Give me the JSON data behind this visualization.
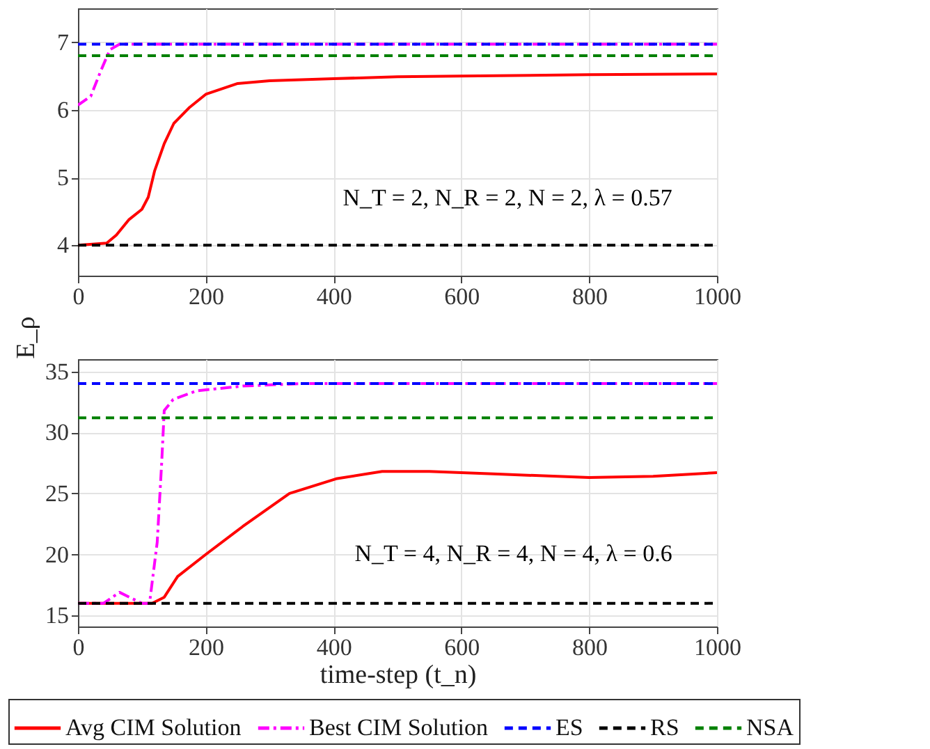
{
  "chart_data": [
    {
      "type": "line",
      "xlim": [
        0,
        1000
      ],
      "xticks": [
        0,
        200,
        400,
        600,
        800,
        1000
      ],
      "ylim": [
        3.55,
        7.5
      ],
      "yticks": [
        4,
        5,
        6,
        7
      ],
      "grid": true,
      "legend": false,
      "marker": "none",
      "annotations": [
        "N_T = 2, N_R = 2, N = 2, λ = 0.57"
      ],
      "series": [
        {
          "color": "#ff0000",
          "line_style": "solid",
          "x": [
            0,
            45,
            60,
            80,
            100,
            110,
            120,
            135,
            150,
            175,
            200,
            250,
            300,
            400,
            500,
            600,
            800,
            1000
          ],
          "values": [
            4.0,
            4.03,
            4.15,
            4.38,
            4.53,
            4.71,
            5.1,
            5.5,
            5.8,
            6.04,
            6.23,
            6.39,
            6.43,
            6.46,
            6.49,
            6.5,
            6.52,
            6.53
          ]
        },
        {
          "color": "#ff00ff",
          "line_style": "dashdot",
          "x": [
            0,
            20,
            35,
            50,
            65,
            1000
          ],
          "values": [
            6.07,
            6.2,
            6.56,
            6.89,
            6.97,
            6.97
          ]
        },
        {
          "color": "#0000ff",
          "line_style": "dashed",
          "x": [
            0,
            1000
          ],
          "values": [
            6.97,
            6.97
          ]
        },
        {
          "color": "#000000",
          "line_style": "dashed",
          "x": [
            0,
            1000
          ],
          "values": [
            4.0,
            4.0
          ]
        },
        {
          "color": "#008000",
          "line_style": "dashed",
          "x": [
            0,
            1000
          ],
          "values": [
            6.8,
            6.8
          ]
        }
      ]
    },
    {
      "type": "line",
      "xlabel": "time-step (t_n)",
      "ylabel": "E_ρ",
      "xlim": [
        0,
        1000
      ],
      "xticks": [
        0,
        200,
        400,
        600,
        800,
        1000
      ],
      "ylim": [
        14.1,
        36
      ],
      "yticks": [
        15,
        20,
        25,
        30,
        35
      ],
      "grid": true,
      "legend": "bottom",
      "marker": "none",
      "annotations": [
        "N_T = 4, N_R = 4, N = 4, λ = 0.6"
      ],
      "series": [
        {
          "name": "Avg CIM Solution",
          "color": "#ff0000",
          "line_style": "solid",
          "x": [
            0,
            116,
            135,
            156,
            200,
            258,
            331,
            404,
            476,
            550,
            650,
            800,
            900,
            1000
          ],
          "values": [
            16.0,
            16.0,
            16.5,
            18.2,
            20.0,
            22.3,
            25.0,
            26.2,
            26.8,
            26.8,
            26.6,
            26.3,
            26.4,
            26.7
          ]
        },
        {
          "name": "Best CIM Solution",
          "color": "#ff00ff",
          "line_style": "dashdot",
          "x": [
            0,
            40,
            65,
            100,
            112,
            124,
            131,
            135,
            149,
            185,
            258,
            350,
            1000
          ],
          "values": [
            16.0,
            16.0,
            16.9,
            16.0,
            16.0,
            21.0,
            27.5,
            31.8,
            32.7,
            33.4,
            33.8,
            34.0,
            34.0
          ]
        },
        {
          "name": "ES",
          "color": "#0000ff",
          "line_style": "dashed",
          "x": [
            0,
            1000
          ],
          "values": [
            34.0,
            34.0
          ]
        },
        {
          "name": "RS",
          "color": "#000000",
          "line_style": "dashed",
          "x": [
            0,
            1000
          ],
          "values": [
            16.0,
            16.0
          ]
        },
        {
          "name": "NSA",
          "color": "#008000",
          "line_style": "dashed",
          "x": [
            0,
            1000
          ],
          "values": [
            31.2,
            31.2
          ]
        }
      ]
    }
  ]
}
